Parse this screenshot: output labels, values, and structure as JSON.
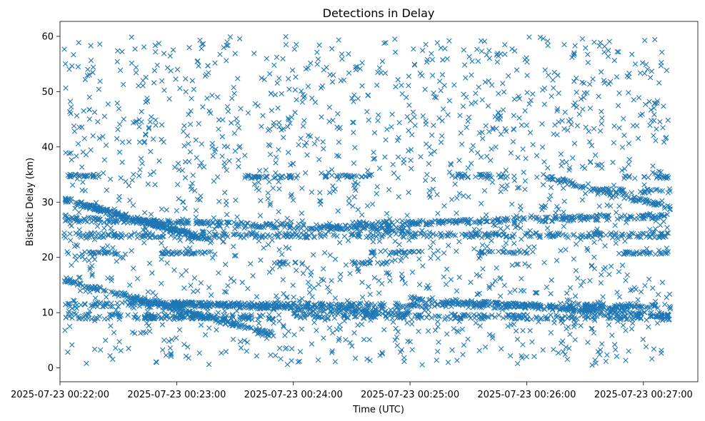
{
  "chart_data": {
    "type": "scatter",
    "title": "Detections in Delay",
    "xlabel": "Time (UTC)",
    "ylabel": "Bistatic Delay (km)",
    "marker": "x",
    "color": "#1f77b4",
    "xlim_seconds": [
      0,
      328
    ],
    "ylim": [
      -2.5,
      62.7
    ],
    "x_ticks": [
      {
        "sec": 0,
        "label": "2025-07-23 00:22:00"
      },
      {
        "sec": 60,
        "label": "2025-07-23 00:23:00"
      },
      {
        "sec": 120,
        "label": "2025-07-23 00:24:00"
      },
      {
        "sec": 180,
        "label": "2025-07-23 00:25:00"
      },
      {
        "sec": 240,
        "label": "2025-07-23 00:26:00"
      },
      {
        "sec": 300,
        "label": "2025-07-23 00:27:00"
      }
    ],
    "y_ticks": [
      0,
      10,
      20,
      30,
      40,
      50,
      60
    ],
    "x_start": "2025-07-23 00:22:00",
    "x_end": "2025-07-23 00:27:15",
    "y_noise_range": [
      0.5,
      60
    ],
    "tracks": [
      {
        "t": [
          2,
          78
        ],
        "d": [
          30.5,
          23
        ],
        "n": 170
      },
      {
        "t": [
          12,
          70
        ],
        "d": [
          29.5,
          24
        ],
        "n": 110
      },
      {
        "t": [
          2,
          180
        ],
        "d": [
          27,
          25
        ],
        "n": 300
      },
      {
        "t": [
          150,
          314
        ],
        "d": [
          26,
          27.5
        ],
        "n": 260
      },
      {
        "t": [
          2,
          314
        ],
        "d": [
          24,
          24
        ],
        "n": 360
      },
      {
        "t": [
          2,
          314
        ],
        "d": [
          11.5,
          11.2
        ],
        "n": 400
      },
      {
        "t": [
          2,
          110
        ],
        "d": [
          16,
          6
        ],
        "n": 230
      },
      {
        "t": [
          40,
          180
        ],
        "d": [
          12,
          10
        ],
        "n": 250
      },
      {
        "t": [
          180,
          314
        ],
        "d": [
          12.5,
          9.5
        ],
        "n": 230
      },
      {
        "t": [
          120,
          314
        ],
        "d": [
          9.5,
          9
        ],
        "n": 230
      },
      {
        "t": [
          2,
          110
        ],
        "d": [
          9.3,
          9.2
        ],
        "n": 130
      },
      {
        "t": [
          250,
          314
        ],
        "d": [
          34.5,
          29
        ],
        "n": 100
      },
      {
        "t": [
          280,
          314
        ],
        "d": [
          32,
          32
        ],
        "n": 30
      },
      {
        "t": [
          200,
          230
        ],
        "d": [
          34.8,
          34.8
        ],
        "n": 30
      }
    ],
    "bands": [
      {
        "t": [
          2,
          20
        ],
        "d": 34.8,
        "n": 30
      },
      {
        "t": [
          95,
          120
        ],
        "d": 34.6,
        "n": 40
      },
      {
        "t": [
          135,
          160
        ],
        "d": 34.7,
        "n": 30
      },
      {
        "t": [
          285,
          314
        ],
        "d": 34.5,
        "n": 20
      },
      {
        "t": [
          10,
          30
        ],
        "d": 20.8,
        "n": 25
      },
      {
        "t": [
          50,
          80
        ],
        "d": 20.8,
        "n": 40
      },
      {
        "t": [
          160,
          185
        ],
        "d": 21,
        "n": 25
      },
      {
        "t": [
          215,
          245
        ],
        "d": 20.9,
        "n": 30
      },
      {
        "t": [
          285,
          314
        ],
        "d": 20.8,
        "n": 30
      },
      {
        "t": [
          150,
          170
        ],
        "d": 19,
        "n": 20
      },
      {
        "t": [
          110,
          125
        ],
        "d": 19,
        "n": 15
      },
      {
        "t": [
          270,
          300
        ],
        "d": 11,
        "n": 40
      },
      {
        "t": [
          40,
          70
        ],
        "d": 9.1,
        "n": 30
      }
    ],
    "noise_count": 1700,
    "seed": 20250723
  }
}
